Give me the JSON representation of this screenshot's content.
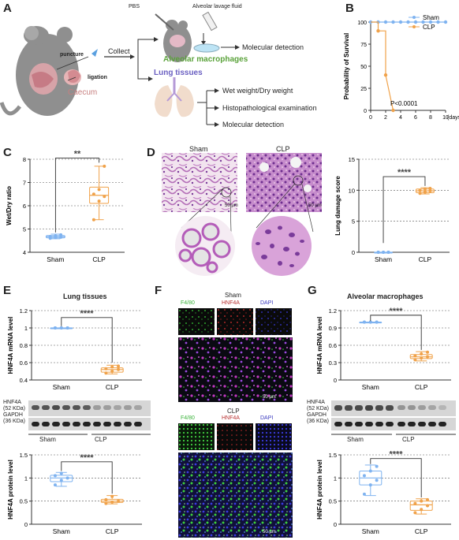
{
  "panels": {
    "A": {
      "letter": "A",
      "pbs": "PBS",
      "lavage": "Alveolar lavage fluid",
      "puncture": "puncture",
      "ligation": "ligation",
      "caecum": "Caecum",
      "collect": "Collect",
      "macrophages": "Alveolar macrophages",
      "molecular1": "Molecular detection",
      "lung_tissues": "Lung tissues",
      "wet_dry": "Wet weight/Dry weight",
      "histo": "Histopathological examination",
      "molecular2": "Molecular detection",
      "colors": {
        "macrophage_text": "#5aa23a",
        "lung_text": "#6a5fc1",
        "caecum_text": "#c77f7f"
      }
    },
    "B": {
      "letter": "B",
      "pvalue": "P<0.0001",
      "days": "(days)"
    },
    "C": {
      "letter": "C",
      "stars": "**"
    },
    "D": {
      "letter": "D",
      "sham": "Sham",
      "clp": "CLP",
      "scale1": "50 µm",
      "scale2": "50 µm",
      "stars": "****"
    },
    "E": {
      "letter": "E",
      "title": "Lung tissues",
      "stars_mrna": "****",
      "stars_protein": "****",
      "blot_hnf4a": "HNF4A",
      "blot_hnf4a_kda": "(52 KDa)",
      "blot_gapdh": "GAPDH",
      "blot_gapdh_kda": "(36 KDa)",
      "group_sham": "Sham",
      "group_clp": "CLP"
    },
    "F": {
      "letter": "F",
      "sham": "Sham",
      "clp": "CLP",
      "f480": "F4/80",
      "hnf4a": "HNF4A",
      "dapi": "DAPI",
      "scale1": "50 µm",
      "scale2": "50 µm"
    },
    "G": {
      "letter": "G",
      "title": "Alveolar macrophages",
      "stars_mrna": "****",
      "stars_protein": "****",
      "blot_hnf4a": "HNF4A",
      "blot_hnf4a_kda": "(52 KDa)",
      "blot_gapdh": "GAPDH",
      "blot_gapdh_kda": "(36 KDa)",
      "group_sham": "Sham",
      "group_clp": "CLP"
    }
  },
  "colors": {
    "sham": "#7fb3f0",
    "clp": "#f0a24a"
  },
  "chart_data": [
    {
      "id": "B",
      "type": "line",
      "xlabel": "",
      "ylabel": "Probability of Survival",
      "xlim": [
        0,
        10
      ],
      "ylim": [
        0,
        100
      ],
      "xticks": [
        0,
        2,
        4,
        6,
        8,
        10
      ],
      "yticks": [
        0,
        25,
        50,
        75,
        100
      ],
      "legend_position": "top-right",
      "series": [
        {
          "name": "Sham",
          "x": [
            0,
            1,
            2,
            3,
            4,
            5,
            6,
            7,
            8,
            9,
            10
          ],
          "y": [
            100,
            100,
            100,
            100,
            100,
            100,
            100,
            100,
            100,
            100,
            100
          ]
        },
        {
          "name": "CLP",
          "x": [
            0,
            1,
            1,
            2,
            2,
            3
          ],
          "y": [
            100,
            100,
            90,
            90,
            40,
            0
          ],
          "markers": [
            [
              1,
              90
            ],
            [
              2,
              40
            ],
            [
              3,
              0
            ]
          ]
        }
      ]
    },
    {
      "id": "C",
      "type": "box",
      "categories": [
        "Sham",
        "CLP"
      ],
      "ylabel": "Wet/Dry ratio",
      "ylim": [
        4,
        8
      ],
      "yticks": [
        4,
        5,
        6,
        7,
        8
      ],
      "grid": true,
      "series": [
        {
          "name": "Sham",
          "min": 4.58,
          "q1": 4.62,
          "median": 4.67,
          "q3": 4.72,
          "max": 4.78,
          "points": [
            4.6,
            4.63,
            4.65,
            4.68,
            4.7,
            4.75
          ]
        },
        {
          "name": "CLP",
          "min": 5.4,
          "q1": 6.1,
          "median": 6.45,
          "q3": 6.8,
          "max": 7.7,
          "points": [
            5.4,
            6.2,
            6.4,
            6.5,
            6.7,
            7.7
          ]
        }
      ]
    },
    {
      "id": "D",
      "type": "box",
      "categories": [
        "Sham",
        "CLP"
      ],
      "ylabel": "Lung damage score",
      "ylim": [
        0,
        15
      ],
      "yticks": [
        0,
        5,
        10,
        15
      ],
      "grid": true,
      "series": [
        {
          "name": "Sham",
          "min": 0,
          "q1": 0,
          "median": 0,
          "q3": 0,
          "max": 0,
          "points": [
            0,
            0,
            0,
            0,
            0,
            0
          ]
        },
        {
          "name": "CLP",
          "min": 9.4,
          "q1": 9.6,
          "median": 9.9,
          "q3": 10.2,
          "max": 10.4,
          "points": [
            9.5,
            9.7,
            9.9,
            10.0,
            10.2,
            10.3
          ]
        }
      ]
    },
    {
      "id": "E-mrna",
      "type": "box",
      "categories": [
        "Sham",
        "CLP"
      ],
      "ylabel": "HNF4A mRNA level",
      "ylim": [
        0.4,
        1.2
      ],
      "yticks": [
        0.4,
        0.6,
        0.8,
        1.0,
        1.2
      ],
      "grid": true,
      "series": [
        {
          "name": "Sham",
          "min": 1.0,
          "q1": 1.0,
          "median": 1.0,
          "q3": 1.0,
          "max": 1.0,
          "points": [
            1.0,
            1.0,
            1.0,
            1.0,
            1.0,
            1.0
          ]
        },
        {
          "name": "CLP",
          "min": 0.47,
          "q1": 0.49,
          "median": 0.52,
          "q3": 0.54,
          "max": 0.57,
          "points": [
            0.48,
            0.5,
            0.52,
            0.53,
            0.55,
            0.56
          ]
        }
      ]
    },
    {
      "id": "E-protein",
      "type": "box",
      "categories": [
        "Sham",
        "CLP"
      ],
      "ylabel": "HNF4A protein level",
      "ylim": [
        0,
        1.5
      ],
      "yticks": [
        0.0,
        0.5,
        1.0,
        1.5
      ],
      "grid": true,
      "series": [
        {
          "name": "Sham",
          "min": 0.82,
          "q1": 0.92,
          "median": 1.0,
          "q3": 1.06,
          "max": 1.12,
          "points": [
            0.85,
            0.95,
            1.0,
            1.05,
            1.1
          ]
        },
        {
          "name": "CLP",
          "min": 0.44,
          "q1": 0.47,
          "median": 0.5,
          "q3": 0.54,
          "max": 0.62,
          "points": [
            0.45,
            0.48,
            0.5,
            0.53,
            0.6
          ]
        }
      ]
    },
    {
      "id": "G-mrna",
      "type": "box",
      "categories": [
        "Sham",
        "CLP"
      ],
      "ylabel": "HNF4A mRNA level",
      "ylim": [
        0.0,
        1.2
      ],
      "yticks": [
        0.0,
        0.3,
        0.6,
        0.9,
        1.2
      ],
      "grid": true,
      "series": [
        {
          "name": "Sham",
          "min": 1.0,
          "q1": 1.0,
          "median": 1.0,
          "q3": 1.0,
          "max": 1.0,
          "points": [
            1.0,
            1.0,
            1.0,
            1.0,
            1.0,
            1.0
          ]
        },
        {
          "name": "CLP",
          "min": 0.33,
          "q1": 0.37,
          "median": 0.4,
          "q3": 0.44,
          "max": 0.49,
          "points": [
            0.35,
            0.38,
            0.4,
            0.42,
            0.45,
            0.48
          ]
        }
      ]
    },
    {
      "id": "G-protein",
      "type": "box",
      "categories": [
        "Sham",
        "CLP"
      ],
      "ylabel": "HNF4A protein level",
      "ylim": [
        0.0,
        1.5
      ],
      "yticks": [
        0.0,
        0.5,
        1.0,
        1.5
      ],
      "grid": true,
      "series": [
        {
          "name": "Sham",
          "min": 0.62,
          "q1": 0.85,
          "median": 1.0,
          "q3": 1.15,
          "max": 1.28,
          "points": [
            0.65,
            0.85,
            0.95,
            1.05,
            1.15,
            1.25
          ]
        },
        {
          "name": "CLP",
          "min": 0.22,
          "q1": 0.3,
          "median": 0.42,
          "q3": 0.5,
          "max": 0.55,
          "points": [
            0.25,
            0.32,
            0.4,
            0.45,
            0.5,
            0.53
          ]
        }
      ]
    }
  ]
}
